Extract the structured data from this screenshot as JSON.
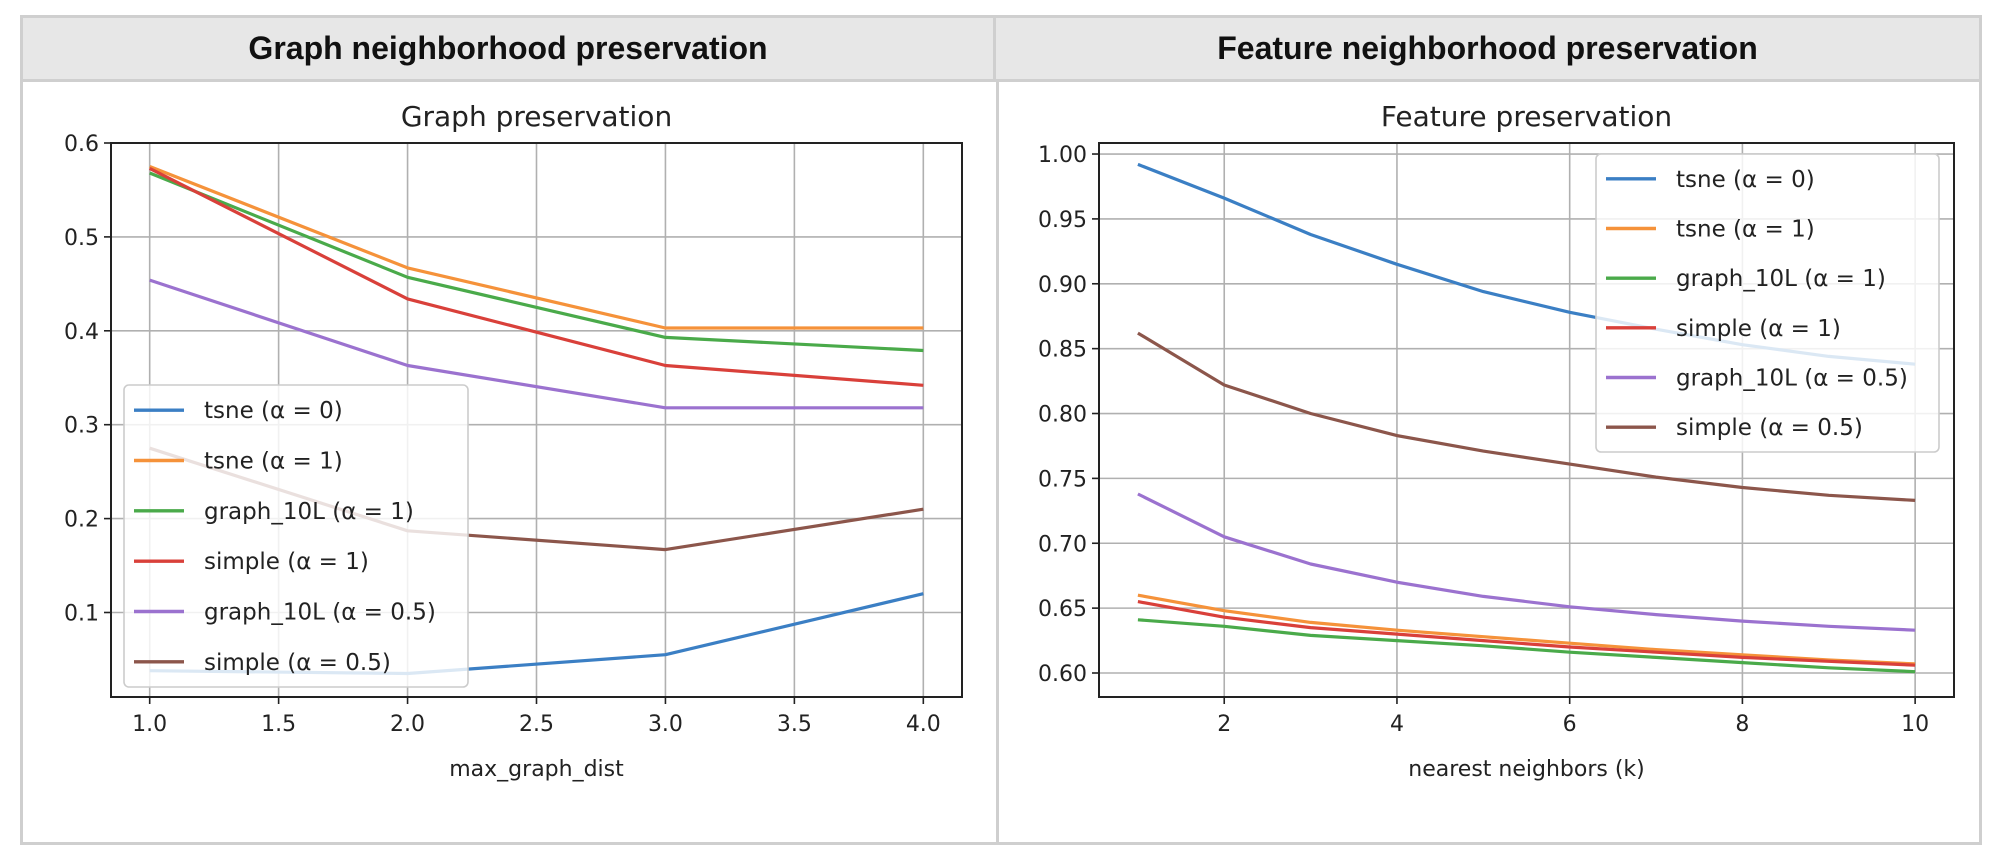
{
  "headers": {
    "left": "Graph neighborhood preservation",
    "right": "Feature neighborhood preservation"
  },
  "legend_labels": [
    "tsne (α = 0)",
    "tsne (α = 1)",
    "graph_10L (α = 1)",
    "simple (α = 1)",
    "graph_10L (α = 0.5)",
    "simple (α = 0.5)"
  ],
  "colors": [
    "#3b7fc4",
    "#f5923a",
    "#4aaa4a",
    "#d9403a",
    "#9b72cf",
    "#8c564b"
  ],
  "chart_data": [
    {
      "type": "line",
      "title": "Graph preservation",
      "xlabel": "max_graph_dist",
      "ylabel": "",
      "xlim": [
        0.85,
        4.15
      ],
      "ylim": [
        0.01,
        0.6
      ],
      "xticks": [
        1.0,
        1.5,
        2.0,
        2.5,
        3.0,
        3.5,
        4.0
      ],
      "xtick_labels": [
        "1.0",
        "1.5",
        "2.0",
        "2.5",
        "3.0",
        "3.5",
        "4.0"
      ],
      "yticks": [
        0.1,
        0.2,
        0.3,
        0.4,
        0.5,
        0.6
      ],
      "ytick_labels": [
        "0.1",
        "0.2",
        "0.3",
        "0.4",
        "0.5",
        "0.6"
      ],
      "grid": true,
      "legend_position": "center-left",
      "x": [
        1,
        2,
        3,
        4
      ],
      "series": [
        {
          "name": "tsne (α = 0)",
          "values": [
            0.038,
            0.035,
            0.055,
            0.12
          ]
        },
        {
          "name": "tsne (α = 1)",
          "values": [
            0.575,
            0.467,
            0.403,
            0.403
          ]
        },
        {
          "name": "graph_10L (α = 1)",
          "values": [
            0.568,
            0.457,
            0.393,
            0.379
          ]
        },
        {
          "name": "simple (α = 1)",
          "values": [
            0.573,
            0.434,
            0.363,
            0.342
          ]
        },
        {
          "name": "graph_10L (α = 0.5)",
          "values": [
            0.454,
            0.363,
            0.318,
            0.318
          ]
        },
        {
          "name": "simple (α = 0.5)",
          "values": [
            0.275,
            0.187,
            0.167,
            0.21
          ]
        }
      ]
    },
    {
      "type": "line",
      "title": "Feature preservation",
      "xlabel": "nearest neighbors (k)",
      "ylabel": "",
      "xlim": [
        0.55,
        10.45
      ],
      "ylim": [
        0.5815,
        1.0085
      ],
      "xticks": [
        2,
        4,
        6,
        8,
        10
      ],
      "xtick_labels": [
        "2",
        "4",
        "6",
        "8",
        "10"
      ],
      "yticks": [
        0.6,
        0.65,
        0.7,
        0.75,
        0.8,
        0.85,
        0.9,
        0.95,
        1.0
      ],
      "ytick_labels": [
        "0.60",
        "0.65",
        "0.70",
        "0.75",
        "0.80",
        "0.85",
        "0.90",
        "0.95",
        "1.00"
      ],
      "grid": true,
      "legend_position": "top-right",
      "x": [
        1,
        2,
        3,
        4,
        5,
        6,
        7,
        8,
        9,
        10
      ],
      "series": [
        {
          "name": "tsne (α = 0)",
          "values": [
            0.992,
            0.966,
            0.938,
            0.915,
            0.894,
            0.878,
            0.865,
            0.853,
            0.844,
            0.838
          ]
        },
        {
          "name": "tsne (α = 1)",
          "values": [
            0.66,
            0.648,
            0.639,
            0.633,
            0.628,
            0.623,
            0.618,
            0.614,
            0.61,
            0.607
          ]
        },
        {
          "name": "graph_10L (α = 1)",
          "values": [
            0.641,
            0.636,
            0.629,
            0.625,
            0.621,
            0.616,
            0.612,
            0.608,
            0.604,
            0.601
          ]
        },
        {
          "name": "simple (α = 1)",
          "values": [
            0.655,
            0.643,
            0.635,
            0.63,
            0.625,
            0.62,
            0.616,
            0.612,
            0.609,
            0.606
          ]
        },
        {
          "name": "graph_10L (α = 0.5)",
          "values": [
            0.738,
            0.705,
            0.684,
            0.67,
            0.659,
            0.651,
            0.645,
            0.64,
            0.636,
            0.633
          ]
        },
        {
          "name": "simple (α = 0.5)",
          "values": [
            0.862,
            0.822,
            0.8,
            0.783,
            0.771,
            0.761,
            0.751,
            0.743,
            0.737,
            0.733
          ]
        }
      ]
    }
  ]
}
